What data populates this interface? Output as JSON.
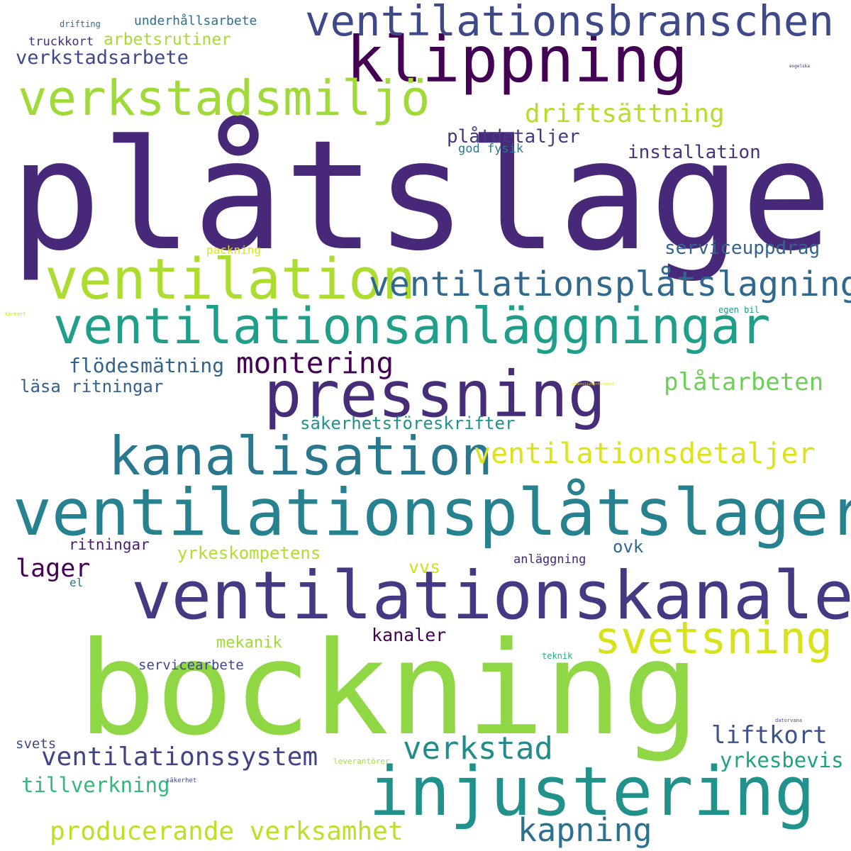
{
  "words": [
    {
      "text": "plåtslageri",
      "color": "#482878"
    },
    {
      "text": "bockning",
      "color": "#8fd744"
    },
    {
      "text": "ventilationsplåtslageri",
      "color": "#26828e"
    },
    {
      "text": "ventilationskanaler",
      "color": "#443983"
    },
    {
      "text": "injustering",
      "color": "#21918c"
    },
    {
      "text": "klippning",
      "color": "#440154"
    },
    {
      "text": "pressning",
      "color": "#472c7a"
    },
    {
      "text": "ventilationsanläggningar",
      "color": "#1f9e89"
    },
    {
      "text": "ventilation",
      "color": "#addc30"
    },
    {
      "text": "kanalisation",
      "color": "#2a788e"
    },
    {
      "text": "ventilationsbranschen",
      "color": "#3e4989"
    },
    {
      "text": "verkstadsmiljö",
      "color": "#a0da39"
    },
    {
      "text": "ventilationsplåtslagning",
      "color": "#31688e"
    },
    {
      "text": "svetsning",
      "color": "#d8e219"
    },
    {
      "text": "ventilationsdetaljer",
      "color": "#dde318"
    },
    {
      "text": "kapning",
      "color": "#2c728e"
    },
    {
      "text": "verkstad",
      "color": "#238a8d"
    },
    {
      "text": "producerande verksamhet",
      "color": "#bddf26"
    },
    {
      "text": "ventilationssystem",
      "color": "#414487"
    },
    {
      "text": "montering",
      "color": "#440154"
    },
    {
      "text": "driftsättning",
      "color": "#b5de2b"
    },
    {
      "text": "plåtarbeten",
      "color": "#6ece58"
    },
    {
      "text": "liftkort",
      "color": "#3b528b"
    },
    {
      "text": "yrkesbevis",
      "color": "#1fa187"
    },
    {
      "text": "tillverkning",
      "color": "#35b779"
    },
    {
      "text": "flödesmätning",
      "color": "#33638d"
    },
    {
      "text": "lager",
      "color": "#440154"
    },
    {
      "text": "installation",
      "color": "#46327e"
    },
    {
      "text": "serviceuppdrag",
      "color": "#33638d"
    },
    {
      "text": "plåtdetaljer",
      "color": "#453781"
    },
    {
      "text": "säkerhetsföreskrifter",
      "color": "#21918c"
    },
    {
      "text": "läsa ritningar",
      "color": "#355f8d"
    },
    {
      "text": "yrkeskompetens",
      "color": "#b2dd2d"
    },
    {
      "text": "verkstadsarbete",
      "color": "#3e4989"
    },
    {
      "text": "arbetsrutiner",
      "color": "#a8db34"
    },
    {
      "text": "kanaler",
      "color": "#440154"
    },
    {
      "text": "underhållsarbete",
      "color": "#2e6e8e"
    },
    {
      "text": "vvs",
      "color": "#d0e11c"
    },
    {
      "text": "mekanik",
      "color": "#9fda3a"
    },
    {
      "text": "ovk",
      "color": "#31688e"
    },
    {
      "text": "ritningar",
      "color": "#481f70"
    },
    {
      "text": "servicearbete",
      "color": "#3f4788"
    },
    {
      "text": "truckkort",
      "color": "#472d7b"
    },
    {
      "text": "svets",
      "color": "#404688"
    },
    {
      "text": "anläggning",
      "color": "#482475"
    },
    {
      "text": "god fysik",
      "color": "#2a788e"
    },
    {
      "text": "packning",
      "color": "#dde318"
    },
    {
      "text": "el",
      "color": "#2c738e"
    },
    {
      "text": "drifting",
      "color": "#31688e"
    },
    {
      "text": "egen bil",
      "color": "#1f9a8a"
    },
    {
      "text": "teknik",
      "color": "#27ad81"
    },
    {
      "text": "leverantörer",
      "color": "#a8db34"
    },
    {
      "text": "säkerhet",
      "color": "#3f4889"
    },
    {
      "text": "datorvana",
      "color": "#3b528b"
    },
    {
      "text": "engelska",
      "color": "#482677"
    },
    {
      "text": "körkort",
      "color": "#c2df23"
    },
    {
      "text": "arbetslivserfarenhet",
      "color": "#e5e419"
    }
  ]
}
